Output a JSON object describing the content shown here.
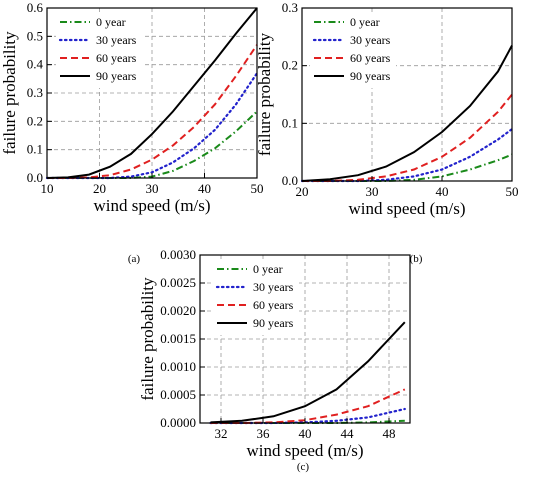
{
  "chart_data": [
    {
      "panel": "(a)",
      "type": "line",
      "xlabel": "wind speed (m/s)",
      "ylabel": "failure probability",
      "xlim": [
        10,
        50
      ],
      "ylim": [
        0,
        0.6
      ],
      "xticks": [
        10,
        20,
        30,
        40,
        50
      ],
      "yticks": [
        0.0,
        0.1,
        0.2,
        0.3,
        0.4,
        0.5,
        0.6
      ],
      "ytick_labels": [
        "0.0",
        "0.1",
        "0.2",
        "0.3",
        "0.4",
        "0.5",
        "0.6"
      ],
      "grid": true,
      "legend_position": "top-left",
      "series": [
        {
          "name": "0 year",
          "color": "#1a8a1a",
          "style": "dashdot",
          "x": [
            10,
            14,
            18,
            22,
            26,
            30,
            34,
            38,
            42,
            46,
            50
          ],
          "y": [
            0,
            0,
            0,
            0,
            0,
            0.005,
            0.025,
            0.06,
            0.105,
            0.165,
            0.235
          ]
        },
        {
          "name": "30 years",
          "color": "#2222cc",
          "style": "dotted",
          "x": [
            10,
            14,
            18,
            22,
            26,
            30,
            34,
            38,
            42,
            46,
            50
          ],
          "y": [
            0,
            0,
            0,
            0,
            0.005,
            0.02,
            0.055,
            0.105,
            0.17,
            0.26,
            0.37
          ]
        },
        {
          "name": "60 years",
          "color": "#e02020",
          "style": "dashed",
          "x": [
            10,
            14,
            18,
            22,
            26,
            30,
            34,
            38,
            42,
            46,
            50
          ],
          "y": [
            0,
            0,
            0.002,
            0.01,
            0.03,
            0.065,
            0.115,
            0.18,
            0.26,
            0.36,
            0.47
          ]
        },
        {
          "name": "90 years",
          "color": "#000000",
          "style": "solid",
          "x": [
            10,
            14,
            18,
            22,
            26,
            30,
            34,
            38,
            42,
            46,
            50
          ],
          "y": [
            0,
            0.002,
            0.012,
            0.04,
            0.085,
            0.155,
            0.235,
            0.325,
            0.415,
            0.51,
            0.6
          ]
        }
      ]
    },
    {
      "panel": "(b)",
      "type": "line",
      "xlabel": "wind speed (m/s)",
      "ylabel": "failure probability",
      "xlim": [
        20,
        50
      ],
      "ylim": [
        0,
        0.3
      ],
      "xticks": [
        20,
        30,
        40,
        50
      ],
      "yticks": [
        0.0,
        0.1,
        0.2,
        0.3
      ],
      "ytick_labels": [
        "0.0",
        "0.1",
        "0.2",
        "0.3"
      ],
      "grid": true,
      "legend_position": "top-left",
      "series": [
        {
          "name": "0 year",
          "color": "#1a8a1a",
          "style": "dashdot",
          "x": [
            20,
            24,
            28,
            32,
            36,
            40,
            44,
            48,
            50
          ],
          "y": [
            0,
            0,
            0,
            0,
            0.002,
            0.008,
            0.02,
            0.036,
            0.046
          ]
        },
        {
          "name": "30 years",
          "color": "#2222cc",
          "style": "dotted",
          "x": [
            20,
            24,
            28,
            32,
            36,
            40,
            44,
            48,
            50
          ],
          "y": [
            0,
            0,
            0,
            0.002,
            0.008,
            0.02,
            0.042,
            0.072,
            0.09
          ]
        },
        {
          "name": "60 years",
          "color": "#e02020",
          "style": "dashed",
          "x": [
            20,
            24,
            28,
            32,
            36,
            40,
            44,
            48,
            50
          ],
          "y": [
            0,
            0,
            0.002,
            0.008,
            0.02,
            0.042,
            0.075,
            0.12,
            0.15
          ]
        },
        {
          "name": "90 years",
          "color": "#000000",
          "style": "solid",
          "x": [
            20,
            24,
            28,
            32,
            36,
            40,
            44,
            48,
            50
          ],
          "y": [
            0,
            0.003,
            0.01,
            0.025,
            0.05,
            0.085,
            0.13,
            0.19,
            0.235
          ]
        }
      ]
    },
    {
      "panel": "(c)",
      "type": "line",
      "xlabel": "wind speed (m/s)",
      "ylabel": "failure probability",
      "xlim": [
        30,
        50
      ],
      "ylim": [
        0,
        0.003
      ],
      "xticks": [
        32,
        36,
        40,
        44,
        48
      ],
      "yticks": [
        0.0,
        0.0005,
        0.001,
        0.0015,
        0.002,
        0.0025,
        0.003
      ],
      "ytick_labels": [
        "0.0000",
        "0.0005",
        "0.0010",
        "0.0015",
        "0.0020",
        "0.0025",
        "0.0030"
      ],
      "grid": true,
      "legend_position": "top-left",
      "series": [
        {
          "name": "0 year",
          "color": "#1a8a1a",
          "style": "dashdot",
          "x": [
            31,
            34,
            37,
            40,
            43,
            46,
            49.5
          ],
          "y": [
            0,
            0,
            0,
            0,
            0,
            1e-05,
            4e-05
          ]
        },
        {
          "name": "30 years",
          "color": "#2222cc",
          "style": "dotted",
          "x": [
            31,
            34,
            37,
            40,
            43,
            46,
            49.5
          ],
          "y": [
            0,
            0,
            0,
            1e-05,
            4e-05,
            0.0001,
            0.00025
          ]
        },
        {
          "name": "60 years",
          "color": "#e02020",
          "style": "dashed",
          "x": [
            31,
            34,
            37,
            40,
            43,
            46,
            49.5
          ],
          "y": [
            0,
            0,
            1e-05,
            5e-05,
            0.00015,
            0.0003,
            0.0006
          ]
        },
        {
          "name": "90 years",
          "color": "#000000",
          "style": "solid",
          "x": [
            31,
            34,
            37,
            40,
            43,
            46,
            49.5
          ],
          "y": [
            1e-05,
            4e-05,
            0.00012,
            0.0003,
            0.0006,
            0.0011,
            0.0018
          ]
        }
      ]
    }
  ]
}
